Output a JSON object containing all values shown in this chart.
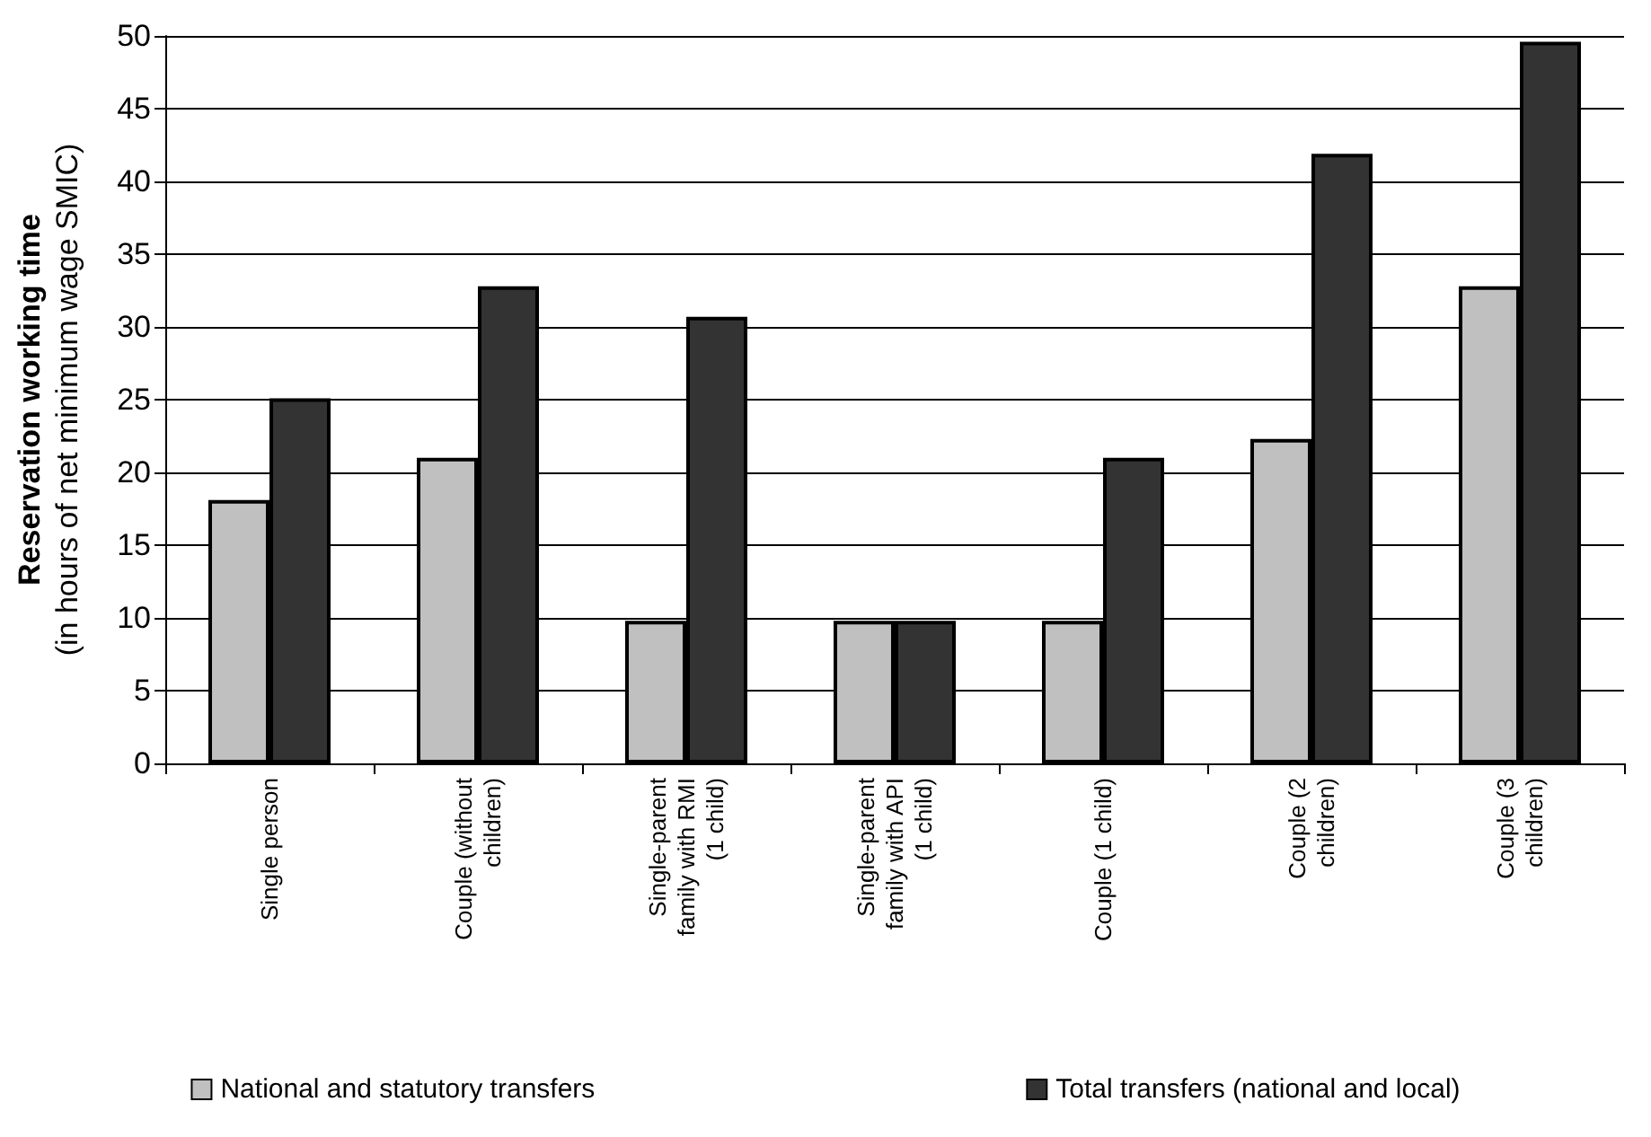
{
  "chart_data": {
    "type": "bar",
    "ylabel": "Reservation working time\n(in hours of net minimum wage SMIC)",
    "categories": [
      "Single person",
      "Couple (without children)",
      "Single-parent family with RMI (1 child)",
      "Single-parent family with API (1 child)",
      "Couple (1 child)",
      "Couple (2 children)",
      "Couple (3 children)"
    ],
    "series": [
      {
        "name": "National and statutory transfers",
        "color": "#c0c0c0",
        "values": [
          18.1,
          21.0,
          9.8,
          9.8,
          9.8,
          22.3,
          32.8
        ]
      },
      {
        "name": "Total transfers (national and local)",
        "color": "#333333",
        "values": [
          25.1,
          32.8,
          30.7,
          9.8,
          21.0,
          41.9,
          49.6
        ]
      }
    ],
    "ylim": [
      0,
      50
    ],
    "yticks": [
      0,
      5,
      10,
      15,
      20,
      25,
      30,
      35,
      40,
      45,
      50
    ],
    "grid": "y",
    "legend": "bottom"
  }
}
